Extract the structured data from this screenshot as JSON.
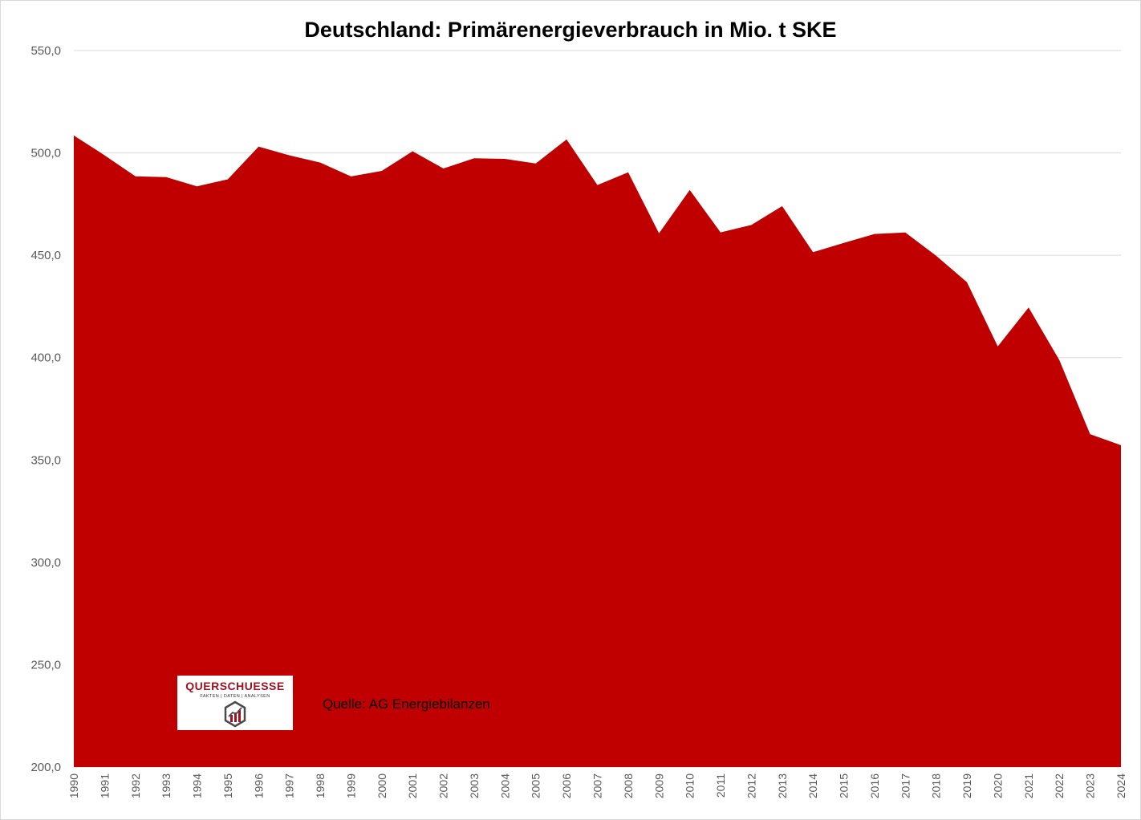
{
  "chart_data": {
    "type": "area",
    "title": "Deutschland: Primärenergieverbrauch  in Mio. t SKE",
    "xlabel": "",
    "ylabel": "",
    "ylim": [
      200,
      550
    ],
    "yticks": [
      "200,0",
      "250,0",
      "300,0",
      "350,0",
      "400,0",
      "450,0",
      "500,0",
      "550,0"
    ],
    "grid": true,
    "categories": [
      "1990",
      "1991",
      "1992",
      "1993",
      "1994",
      "1995",
      "1996",
      "1997",
      "1998",
      "1999",
      "2000",
      "2001",
      "2002",
      "2003",
      "2004",
      "2005",
      "2006",
      "2007",
      "2008",
      "2009",
      "2010",
      "2011",
      "2012",
      "2013",
      "2014",
      "2015",
      "2016",
      "2017",
      "2018",
      "2019",
      "2020",
      "2021",
      "2022",
      "2023",
      "2024"
    ],
    "values": [
      508.5,
      498.8,
      488.6,
      488.2,
      483.7,
      487.1,
      503.1,
      498.8,
      495.3,
      488.5,
      491.2,
      500.8,
      492.4,
      497.4,
      497.1,
      494.8,
      506.6,
      484.3,
      490.5,
      460.7,
      481.9,
      461.2,
      464.8,
      474.0,
      451.5,
      456.0,
      460.4,
      461.1,
      449.8,
      436.8,
      405.5,
      424.5,
      398.8,
      362.6,
      357.2
    ],
    "color": "#c00000"
  },
  "logo": {
    "name": "QUERSCHUESSE",
    "tagline": "FAKTEN | DATEN | ANALYSEN",
    "icon": "chart-hexagon-icon"
  },
  "source": "Quelle: AG Energiebilanzen"
}
